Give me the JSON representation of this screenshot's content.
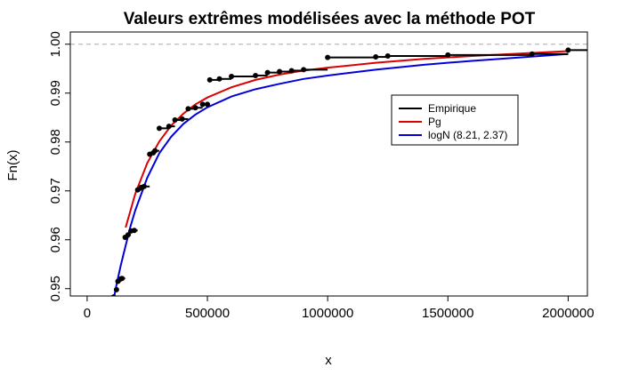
{
  "chart_data": {
    "type": "line",
    "title": "Valeurs extrêmes modélisées avec la méthode POT",
    "xlabel": "x",
    "ylabel": "Fn(x)",
    "xlim": [
      -70000,
      2080000
    ],
    "ylim": [
      0.9485,
      1.0025
    ],
    "x_ticks": [
      0,
      500000,
      1000000,
      1500000,
      2000000
    ],
    "x_tick_labels": [
      "0",
      "500000",
      "1000000",
      "1500000",
      "2000000"
    ],
    "y_ticks": [
      0.95,
      0.96,
      0.97,
      0.98,
      0.99,
      1.0
    ],
    "y_tick_labels": [
      "0.95",
      "0.96",
      "0.97",
      "0.98",
      "0.99",
      "1.00"
    ],
    "reference_line": {
      "y": 1.0,
      "style": "dashed",
      "color": "#aaaaaa"
    },
    "legend": {
      "position": "top-right-inside"
    },
    "series": [
      {
        "name": "Empirique",
        "kind": "step",
        "color": "#000000",
        "x": [
          110000,
          122000,
          128000,
          140000,
          145000,
          158000,
          170000,
          182000,
          196000,
          210000,
          225000,
          237000,
          260000,
          275000,
          282000,
          300000,
          340000,
          365000,
          395000,
          420000,
          450000,
          480000,
          500000,
          510000,
          550000,
          600000,
          700000,
          750000,
          800000,
          850000,
          900000,
          1000000,
          1200000,
          1250000,
          1500000,
          1850000,
          2000000
        ],
        "y": [
          0.9483,
          0.9498,
          0.9515,
          0.952,
          0.9521,
          0.9605,
          0.961,
          0.9618,
          0.9619,
          0.9702,
          0.9707,
          0.9709,
          0.9775,
          0.9778,
          0.9782,
          0.9828,
          0.9832,
          0.9845,
          0.9847,
          0.9868,
          0.987,
          0.9877,
          0.9877,
          0.9927,
          0.9929,
          0.9934,
          0.9936,
          0.9942,
          0.9944,
          0.9946,
          0.9948,
          0.9973,
          0.9974,
          0.9976,
          0.9978,
          0.998,
          0.9988
        ]
      },
      {
        "name": "Pg",
        "kind": "curve",
        "color": "#dd0000",
        "x": [
          160000,
          200000,
          250000,
          300000,
          350000,
          400000,
          450000,
          500000,
          600000,
          700000,
          800000,
          900000,
          1000000,
          1200000,
          1400000,
          1600000,
          1800000,
          2000000
        ],
        "y": [
          0.9625,
          0.9694,
          0.9757,
          0.9801,
          0.9834,
          0.9858,
          0.9877,
          0.9891,
          0.9912,
          0.9927,
          0.9938,
          0.9946,
          0.9952,
          0.9962,
          0.997,
          0.9976,
          0.9981,
          0.9986
        ]
      },
      {
        "name": "logN (8.21, 2.37)",
        "kind": "curve",
        "color": "#0000dd",
        "x": [
          112000,
          125000,
          140000,
          160000,
          180000,
          200000,
          250000,
          300000,
          350000,
          400000,
          450000,
          500000,
          600000,
          700000,
          800000,
          900000,
          1000000,
          1200000,
          1400000,
          1600000,
          1800000,
          2000000
        ],
        "y": [
          0.9483,
          0.9515,
          0.9548,
          0.9588,
          0.9627,
          0.966,
          0.9727,
          0.9777,
          0.9811,
          0.9837,
          0.9856,
          0.9871,
          0.9893,
          0.9908,
          0.9919,
          0.9929,
          0.9936,
          0.9948,
          0.9958,
          0.9966,
          0.9973,
          0.998
        ]
      }
    ]
  }
}
